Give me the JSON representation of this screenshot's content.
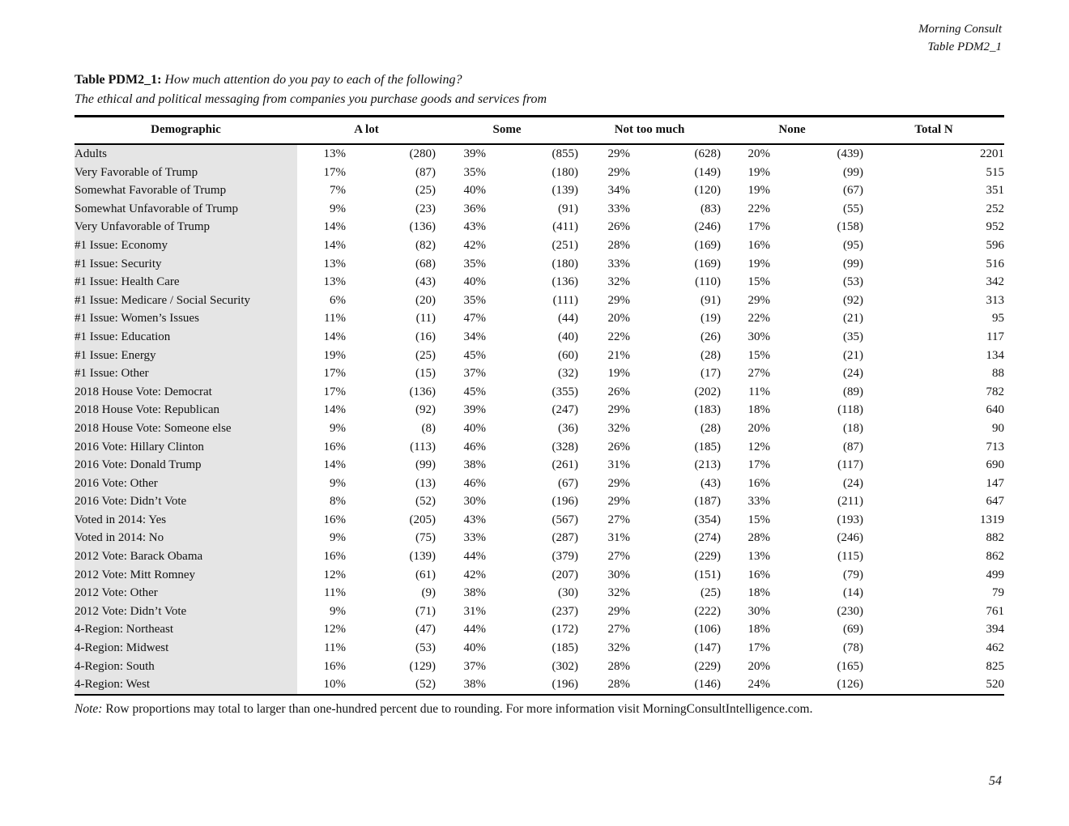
{
  "colors": {
    "row_label_bg": "#e5e5e5",
    "rule": "#000000",
    "text": "#111111"
  },
  "corner": {
    "line1": "Morning Consult",
    "line2": "Table PDM2_1"
  },
  "title": {
    "prefix": "Table PDM2_1:",
    "question": "How much attention do you pay to each of the following?",
    "subtitle": "The ethical and political messaging from companies you purchase goods and services from"
  },
  "table": {
    "headers": {
      "demographic": "Demographic",
      "a_lot": "A lot",
      "some": "Some",
      "not_too_much": "Not too much",
      "none": "None",
      "total_n": "Total N"
    },
    "rows": [
      [
        "Adults",
        "13%",
        "(280)",
        "39%",
        "(855)",
        "29%",
        "(628)",
        "20%",
        "(439)",
        "2201"
      ],
      [
        "Very Favorable of Trump",
        "17%",
        "(87)",
        "35%",
        "(180)",
        "29%",
        "(149)",
        "19%",
        "(99)",
        "515"
      ],
      [
        "Somewhat Favorable of Trump",
        "7%",
        "(25)",
        "40%",
        "(139)",
        "34%",
        "(120)",
        "19%",
        "(67)",
        "351"
      ],
      [
        "Somewhat Unfavorable of Trump",
        "9%",
        "(23)",
        "36%",
        "(91)",
        "33%",
        "(83)",
        "22%",
        "(55)",
        "252"
      ],
      [
        "Very Unfavorable of Trump",
        "14%",
        "(136)",
        "43%",
        "(411)",
        "26%",
        "(246)",
        "17%",
        "(158)",
        "952"
      ],
      [
        "#1 Issue: Economy",
        "14%",
        "(82)",
        "42%",
        "(251)",
        "28%",
        "(169)",
        "16%",
        "(95)",
        "596"
      ],
      [
        "#1 Issue: Security",
        "13%",
        "(68)",
        "35%",
        "(180)",
        "33%",
        "(169)",
        "19%",
        "(99)",
        "516"
      ],
      [
        "#1 Issue: Health Care",
        "13%",
        "(43)",
        "40%",
        "(136)",
        "32%",
        "(110)",
        "15%",
        "(53)",
        "342"
      ],
      [
        "#1 Issue: Medicare / Social Security",
        "6%",
        "(20)",
        "35%",
        "(111)",
        "29%",
        "(91)",
        "29%",
        "(92)",
        "313"
      ],
      [
        "#1 Issue: Women’s Issues",
        "11%",
        "(11)",
        "47%",
        "(44)",
        "20%",
        "(19)",
        "22%",
        "(21)",
        "95"
      ],
      [
        "#1 Issue: Education",
        "14%",
        "(16)",
        "34%",
        "(40)",
        "22%",
        "(26)",
        "30%",
        "(35)",
        "117"
      ],
      [
        "#1 Issue: Energy",
        "19%",
        "(25)",
        "45%",
        "(60)",
        "21%",
        "(28)",
        "15%",
        "(21)",
        "134"
      ],
      [
        "#1 Issue: Other",
        "17%",
        "(15)",
        "37%",
        "(32)",
        "19%",
        "(17)",
        "27%",
        "(24)",
        "88"
      ],
      [
        "2018 House Vote: Democrat",
        "17%",
        "(136)",
        "45%",
        "(355)",
        "26%",
        "(202)",
        "11%",
        "(89)",
        "782"
      ],
      [
        "2018 House Vote: Republican",
        "14%",
        "(92)",
        "39%",
        "(247)",
        "29%",
        "(183)",
        "18%",
        "(118)",
        "640"
      ],
      [
        "2018 House Vote: Someone else",
        "9%",
        "(8)",
        "40%",
        "(36)",
        "32%",
        "(28)",
        "20%",
        "(18)",
        "90"
      ],
      [
        "2016 Vote: Hillary Clinton",
        "16%",
        "(113)",
        "46%",
        "(328)",
        "26%",
        "(185)",
        "12%",
        "(87)",
        "713"
      ],
      [
        "2016 Vote: Donald Trump",
        "14%",
        "(99)",
        "38%",
        "(261)",
        "31%",
        "(213)",
        "17%",
        "(117)",
        "690"
      ],
      [
        "2016 Vote: Other",
        "9%",
        "(13)",
        "46%",
        "(67)",
        "29%",
        "(43)",
        "16%",
        "(24)",
        "147"
      ],
      [
        "2016 Vote: Didn’t Vote",
        "8%",
        "(52)",
        "30%",
        "(196)",
        "29%",
        "(187)",
        "33%",
        "(211)",
        "647"
      ],
      [
        "Voted in 2014: Yes",
        "16%",
        "(205)",
        "43%",
        "(567)",
        "27%",
        "(354)",
        "15%",
        "(193)",
        "1319"
      ],
      [
        "Voted in 2014: No",
        "9%",
        "(75)",
        "33%",
        "(287)",
        "31%",
        "(274)",
        "28%",
        "(246)",
        "882"
      ],
      [
        "2012 Vote: Barack Obama",
        "16%",
        "(139)",
        "44%",
        "(379)",
        "27%",
        "(229)",
        "13%",
        "(115)",
        "862"
      ],
      [
        "2012 Vote: Mitt Romney",
        "12%",
        "(61)",
        "42%",
        "(207)",
        "30%",
        "(151)",
        "16%",
        "(79)",
        "499"
      ],
      [
        "2012 Vote: Other",
        "11%",
        "(9)",
        "38%",
        "(30)",
        "32%",
        "(25)",
        "18%",
        "(14)",
        "79"
      ],
      [
        "2012 Vote: Didn’t Vote",
        "9%",
        "(71)",
        "31%",
        "(237)",
        "29%",
        "(222)",
        "30%",
        "(230)",
        "761"
      ],
      [
        "4-Region: Northeast",
        "12%",
        "(47)",
        "44%",
        "(172)",
        "27%",
        "(106)",
        "18%",
        "(69)",
        "394"
      ],
      [
        "4-Region: Midwest",
        "11%",
        "(53)",
        "40%",
        "(185)",
        "32%",
        "(147)",
        "17%",
        "(78)",
        "462"
      ],
      [
        "4-Region: South",
        "16%",
        "(129)",
        "37%",
        "(302)",
        "28%",
        "(229)",
        "20%",
        "(165)",
        "825"
      ],
      [
        "4-Region: West",
        "10%",
        "(52)",
        "38%",
        "(196)",
        "28%",
        "(146)",
        "24%",
        "(126)",
        "520"
      ]
    ]
  },
  "note": {
    "label": "Note:",
    "text": "Row proportions may total to larger than one-hundred percent due to rounding. For more information visit MorningConsultIntelligence.com."
  },
  "page_number": "54"
}
